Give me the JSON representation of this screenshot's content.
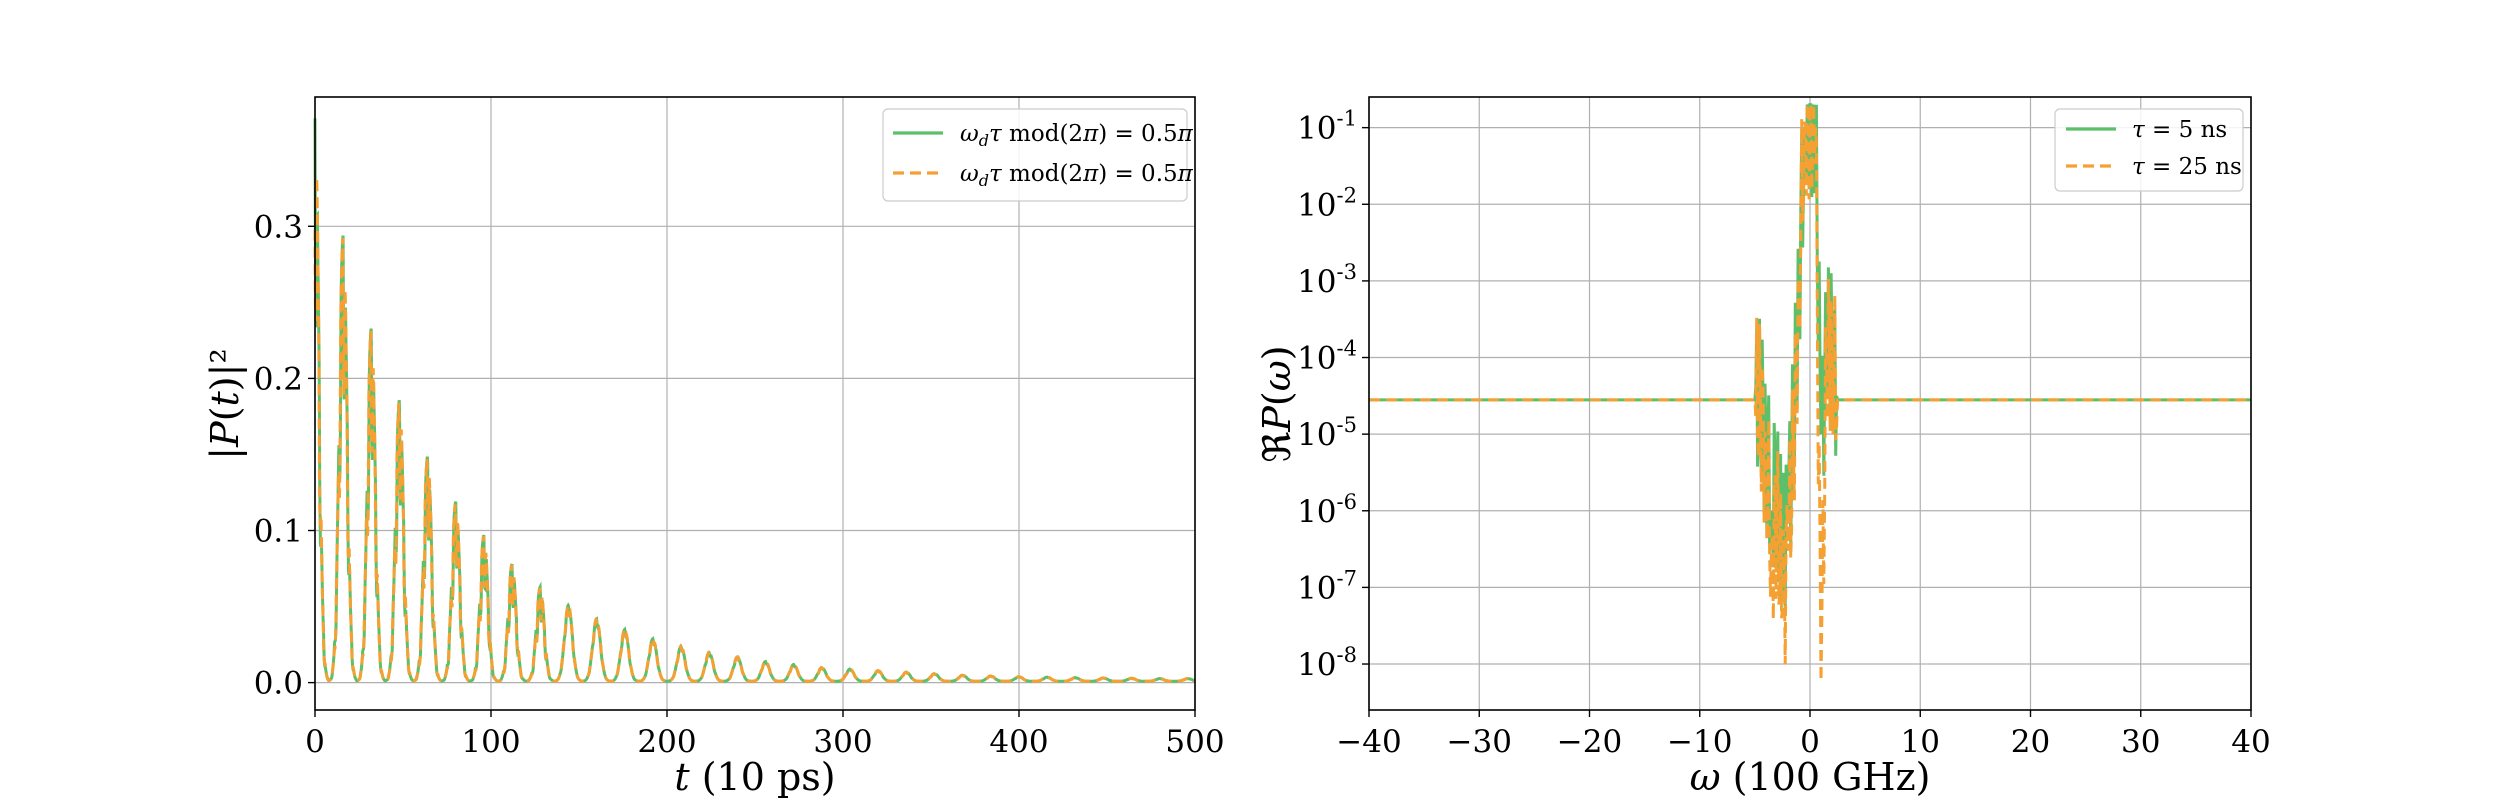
{
  "colors": {
    "green": "#5cbf6a",
    "orange": "#f5a033",
    "grid": "#b0b0b0",
    "axis": "#000000"
  },
  "chart_data": [
    {
      "type": "line",
      "xlabel": "t (10 ps)",
      "ylabel": "|P(t)|²",
      "xlim": [
        0,
        500
      ],
      "ylim": [
        -0.018,
        0.385
      ],
      "xticks": [
        0,
        100,
        200,
        300,
        400,
        500
      ],
      "yticks": [
        0.0,
        0.1,
        0.2,
        0.3
      ],
      "xtick_labels": [
        "0",
        "100",
        "200",
        "300",
        "400",
        "500"
      ],
      "ytick_labels": [
        "0.0",
        "0.1",
        "0.2",
        "0.3"
      ],
      "grid": true,
      "legend_position": "top-right",
      "decay": {
        "period": 16,
        "first_peak": 0.37,
        "peak_decay_per_period": 0.79,
        "floor": 0.003,
        "last_visible_peak_t": 490
      },
      "peaks_x": [
        0,
        16,
        32,
        48,
        64,
        80,
        96,
        112,
        128,
        144,
        160,
        176,
        192,
        208,
        224,
        240,
        256,
        272,
        288,
        304,
        320,
        336,
        352,
        368,
        384,
        400,
        416,
        432,
        448,
        464,
        480
      ],
      "peaks_y": [
        0.37,
        0.293,
        0.232,
        0.185,
        0.148,
        0.118,
        0.096,
        0.077,
        0.062,
        0.05,
        0.041,
        0.034,
        0.028,
        0.023,
        0.019,
        0.016,
        0.013,
        0.011,
        0.009,
        0.008,
        0.007,
        0.006,
        0.005,
        0.004,
        0.0035,
        0.003,
        0.0027,
        0.0024,
        0.0022,
        0.002,
        0.0018
      ],
      "series": [
        {
          "name": "ω_dτ mod(2π) = 0.5π",
          "color": "#5cbf6a",
          "style": "solid"
        },
        {
          "name": "ω_dτ mod(2π) = 0.5π",
          "color": "#f5a033",
          "style": "dashed"
        }
      ]
    },
    {
      "type": "line",
      "xlabel": "ω (100 GHz)",
      "ylabel": "ℜP(ω)",
      "xlim": [
        -40,
        40
      ],
      "ylim_log10": [
        -8.6,
        -0.6
      ],
      "xticks": [
        -40,
        -30,
        -20,
        -10,
        0,
        10,
        20,
        30,
        40
      ],
      "xtick_labels": [
        "−40",
        "−30",
        "−20",
        "−10",
        "0",
        "10",
        "20",
        "30",
        "40"
      ],
      "ytick_exponents": [
        -1,
        -2,
        -3,
        -4,
        -5,
        -6,
        -7,
        -8
      ],
      "ytick_base": "10",
      "scale": "log",
      "grid": true,
      "legend_position": "top-right",
      "baseline": 2.8e-05,
      "x": [
        -40,
        -5,
        -4.5,
        -4,
        -3.5,
        -3,
        -2.5,
        -2,
        -1.5,
        -1,
        -0.5,
        0,
        0.5,
        1,
        1.5,
        2,
        2.5,
        40
      ],
      "series": [
        {
          "name": "τ = 5 ns",
          "color": "#5cbf6a",
          "style": "solid",
          "y": [
            2.8e-05,
            2.8e-05,
            2.5e-05,
            1e-05,
            1e-06,
            3e-06,
            2e-07,
            1e-06,
            1e-05,
            0.001,
            0.1,
            0.2,
            0.08,
            1e-05,
            0.0001,
            0.00018,
            2.8e-05,
            2.8e-05
          ]
        },
        {
          "name": "τ = 25 ns",
          "color": "#f5a033",
          "style": "dashed",
          "y": [
            2.8e-05,
            2.8e-05,
            2.5e-05,
            5e-06,
            3e-07,
            1e-06,
            5e-08,
            3e-07,
            5e-06,
            0.001,
            0.12,
            0.15,
            0.1,
            6e-09,
            0.0001,
            0.00015,
            2.8e-05,
            2.8e-05
          ]
        }
      ]
    }
  ]
}
